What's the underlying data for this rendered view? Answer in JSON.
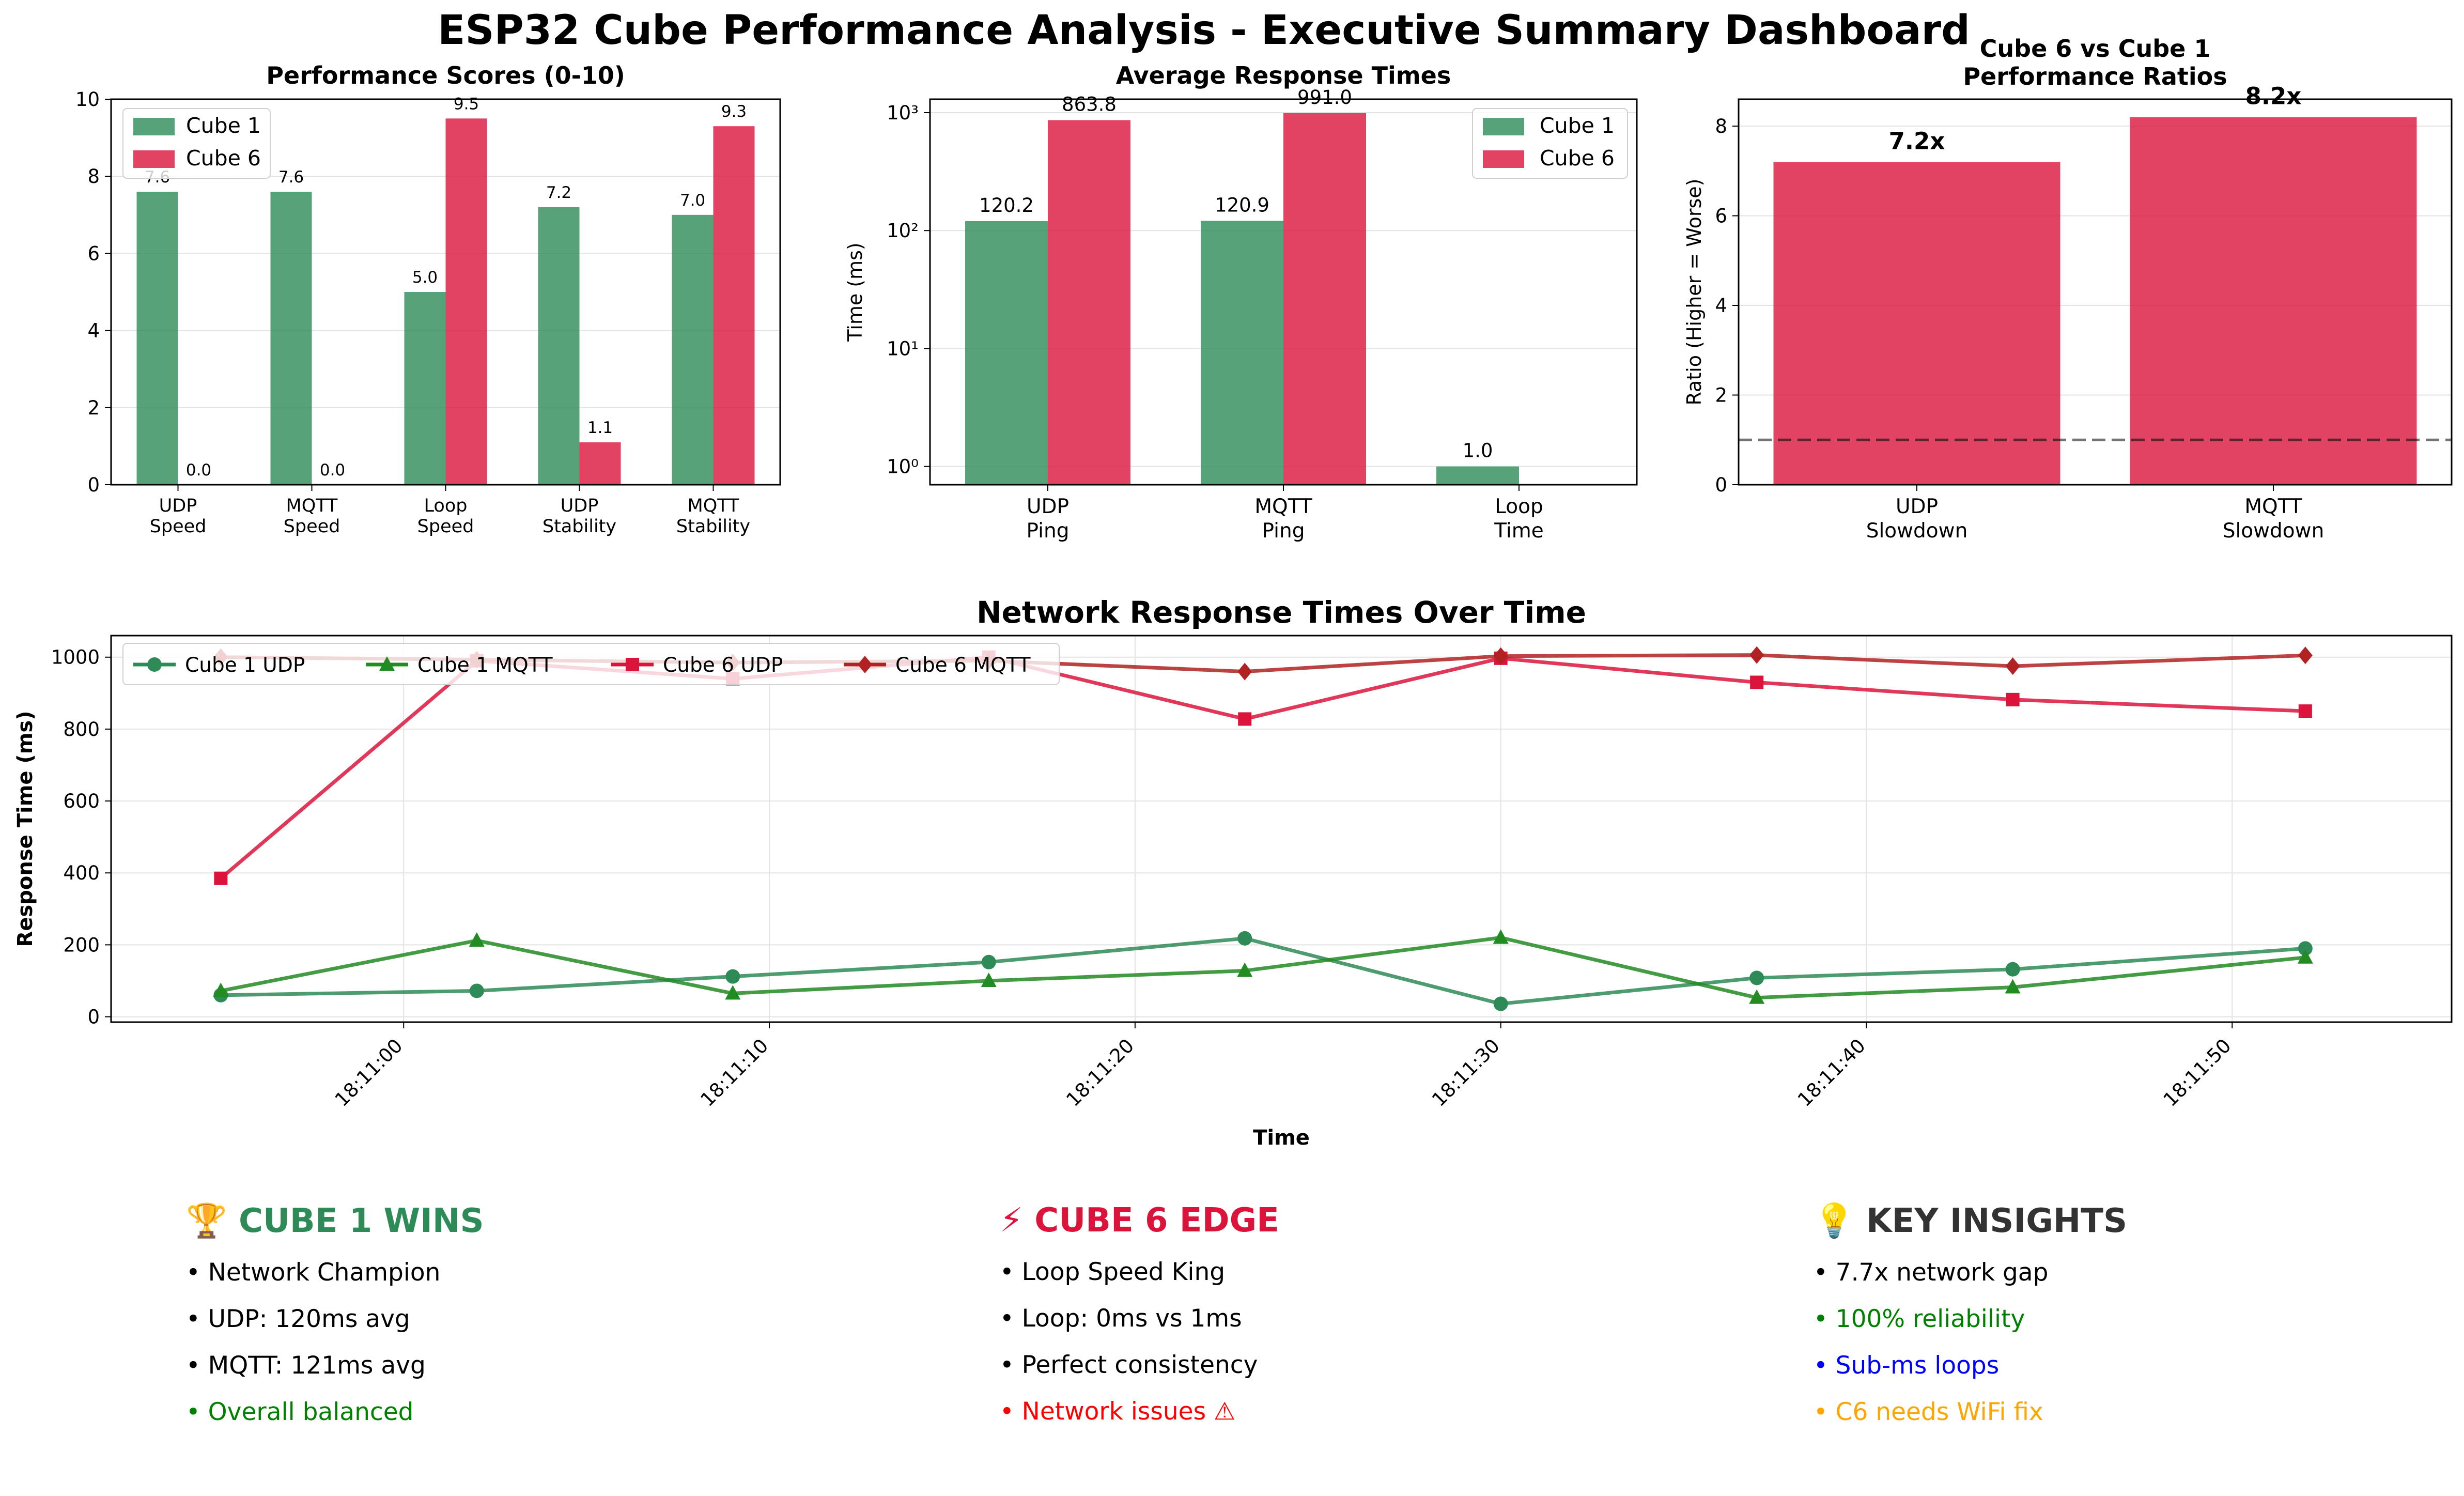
{
  "title": "ESP32 Cube Performance Analysis - Executive Summary Dashboard",
  "colors": {
    "cube1": "#2e8b57",
    "cube6": "#dc143c",
    "cube1_mqtt": "#228b22",
    "cube6_mqtt": "#b22222",
    "green_text": "#008000",
    "red_text": "#ff0000",
    "blue_text": "#0000ff",
    "orange_text": "#ffa500",
    "dark_text": "#333333"
  },
  "chart_data": [
    {
      "id": "scores",
      "type": "bar",
      "title": "Performance Scores (0-10)",
      "categories": [
        "UDP\nSpeed",
        "MQTT\nSpeed",
        "Loop\nSpeed",
        "UDP\nStability",
        "MQTT\nStability"
      ],
      "series": [
        {
          "name": "Cube 1",
          "values": [
            7.6,
            7.6,
            5.0,
            7.2,
            7.0
          ]
        },
        {
          "name": "Cube 6",
          "values": [
            0.0,
            0.0,
            9.5,
            1.1,
            9.3
          ]
        }
      ],
      "data_labels": [
        [
          "7.6",
          "7.6",
          "5.0",
          "7.2",
          "7.0"
        ],
        [
          "0.0",
          "0.0",
          "9.5",
          "1.1",
          "9.3"
        ]
      ],
      "ylim": [
        0,
        10
      ],
      "yticks": [
        "0",
        "2",
        "4",
        "6",
        "8",
        "10"
      ],
      "grid": true,
      "legend": "top-left"
    },
    {
      "id": "response",
      "type": "bar",
      "title": "Average Response Times",
      "ylabel": "Time (ms)",
      "yscale": "log",
      "categories": [
        "UDP\nPing",
        "MQTT\nPing",
        "Loop\nTime"
      ],
      "series": [
        {
          "name": "Cube 1",
          "values": [
            120.2,
            120.9,
            1.0
          ]
        },
        {
          "name": "Cube 6",
          "values": [
            863.8,
            991.0,
            0
          ]
        }
      ],
      "data_labels": [
        [
          "120.2",
          "120.9",
          "1.0"
        ],
        [
          "863.8",
          "991.0",
          ""
        ]
      ],
      "ylim": [
        0.7,
        1300
      ],
      "yticks": [
        "10⁰",
        "10¹",
        "10²",
        "10³"
      ],
      "grid": true,
      "legend": "top-right"
    },
    {
      "id": "ratios",
      "type": "bar",
      "title": "Cube 6 vs Cube 1\nPerformance Ratios",
      "ylabel": "Ratio (Higher = Worse)",
      "categories": [
        "UDP\nSlowdown",
        "MQTT\nSlowdown"
      ],
      "values": [
        7.2,
        8.2
      ],
      "data_labels": [
        "7.2x",
        "8.2x"
      ],
      "reference_line": 1,
      "ylim": [
        0,
        8.6
      ],
      "yticks": [
        "0",
        "2",
        "4",
        "6",
        "8"
      ],
      "grid": true
    },
    {
      "id": "timeline",
      "type": "line",
      "title": "Network Response Times Over Time",
      "xlabel": "Time",
      "ylabel": "Response Time (ms)",
      "x": [
        "18:10:55",
        "18:11:02",
        "18:11:09",
        "18:11:16",
        "18:11:23",
        "18:11:30",
        "18:11:37",
        "18:11:44",
        "18:11:52"
      ],
      "xticks": [
        "18:11:00",
        "18:11:10",
        "18:11:20",
        "18:11:30",
        "18:11:40",
        "18:11:50"
      ],
      "series": [
        {
          "name": "Cube 1 UDP",
          "marker": "circle",
          "values": [
            60,
            72,
            112,
            152,
            218,
            36,
            108,
            132,
            190
          ]
        },
        {
          "name": "Cube 1 MQTT",
          "marker": "triangle",
          "values": [
            72,
            212,
            65,
            100,
            128,
            220,
            53,
            82,
            165
          ]
        },
        {
          "name": "Cube 6 UDP",
          "marker": "square",
          "values": [
            385,
            990,
            940,
            1000,
            828,
            997,
            930,
            882,
            850
          ]
        },
        {
          "name": "Cube 6 MQTT",
          "marker": "diamond",
          "values": [
            1000,
            993,
            985,
            990,
            960,
            1003,
            1006,
            975,
            1005
          ]
        }
      ],
      "ylim": [
        -15,
        1060
      ],
      "yticks": [
        "0",
        "200",
        "400",
        "600",
        "800",
        "1000"
      ],
      "grid": true,
      "legend": "top-left"
    }
  ],
  "panels": [
    {
      "heading": "🏆 CUBE 1 WINS",
      "lines": [
        "• Network Champion",
        "• UDP: 120ms avg",
        "• MQTT: 121ms avg",
        "• Overall balanced"
      ]
    },
    {
      "heading": "⚡ CUBE 6 EDGE",
      "lines": [
        "• Loop Speed King",
        "• Loop: 0ms vs 1ms",
        "• Perfect consistency",
        "• Network issues ⚠"
      ]
    },
    {
      "heading": "💡 KEY INSIGHTS",
      "lines": [
        "• 7.7x network gap",
        "• 100% reliability",
        "• Sub-ms loops",
        "• C6 needs WiFi fix"
      ]
    }
  ]
}
